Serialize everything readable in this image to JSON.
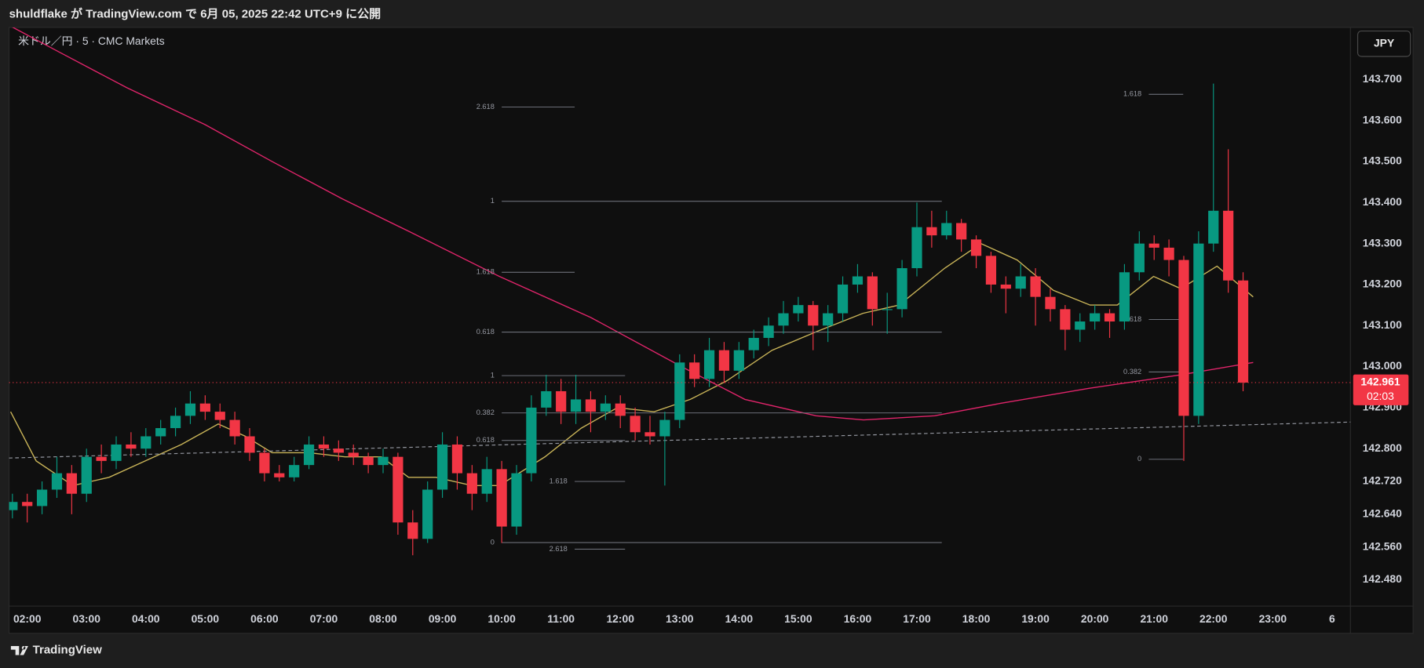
{
  "header": {
    "title": "shuldflake が TradingView.com で 6月 05, 2025 22:42 UTC+9 に公開"
  },
  "footer": {
    "brand": "TradingView"
  },
  "chart_data": {
    "type": "candlestick",
    "symbol": "米ドル／円 · 5 · CMC Markets",
    "currency": "JPY",
    "up_color": "#089981",
    "down_color": "#f23645",
    "x": [
      1.75,
      2,
      2.25,
      2.5,
      2.75,
      3,
      3.25,
      3.5,
      3.75,
      4,
      4.25,
      4.5,
      4.75,
      5,
      5.25,
      5.5,
      5.75,
      6,
      6.25,
      6.5,
      6.75,
      7,
      7.25,
      7.5,
      7.75,
      8,
      8.25,
      8.5,
      8.75,
      9,
      9.25,
      9.5,
      9.75,
      10,
      10.25,
      10.5,
      10.75,
      11,
      11.25,
      11.5,
      11.75,
      12,
      12.25,
      12.5,
      12.75,
      13,
      13.25,
      13.5,
      13.75,
      14,
      14.25,
      14.5,
      14.75,
      15,
      15.25,
      15.5,
      15.75,
      16,
      16.25,
      16.5,
      16.75,
      17,
      17.25,
      17.5,
      17.75,
      18,
      18.25,
      18.5,
      18.75,
      19,
      19.25,
      19.5,
      19.75,
      20,
      20.25,
      20.5,
      20.75,
      21,
      21.25,
      21.5,
      21.75,
      22,
      22.25,
      22.5
    ],
    "open": [
      142.65,
      142.67,
      142.66,
      142.7,
      142.74,
      142.69,
      142.78,
      142.77,
      142.81,
      142.8,
      142.83,
      142.85,
      142.88,
      142.91,
      142.89,
      142.87,
      142.83,
      142.79,
      142.74,
      142.73,
      142.76,
      142.81,
      142.8,
      142.79,
      142.78,
      142.76,
      142.78,
      142.62,
      142.58,
      142.7,
      142.81,
      142.74,
      142.69,
      142.75,
      142.61,
      142.74,
      142.9,
      142.94,
      142.89,
      142.92,
      142.89,
      142.91,
      142.88,
      142.84,
      142.83,
      142.87,
      143.01,
      142.97,
      143.04,
      142.99,
      143.04,
      143.07,
      143.1,
      143.13,
      143.15,
      143.1,
      143.13,
      143.2,
      143.22,
      143.14,
      143.14,
      143.24,
      143.34,
      143.32,
      143.35,
      143.31,
      143.27,
      143.2,
      143.19,
      143.22,
      143.17,
      143.14,
      143.09,
      143.11,
      143.13,
      143.11,
      143.23,
      143.3,
      143.29,
      143.26,
      142.88,
      143.3,
      143.38,
      143.21
    ],
    "high": [
      142.69,
      142.69,
      142.72,
      142.78,
      142.76,
      142.8,
      142.81,
      142.83,
      142.84,
      142.85,
      142.87,
      142.9,
      142.94,
      142.93,
      142.91,
      142.89,
      142.85,
      142.8,
      142.76,
      142.78,
      142.83,
      142.83,
      142.82,
      142.81,
      142.79,
      142.8,
      142.79,
      142.65,
      142.72,
      142.84,
      142.83,
      142.76,
      142.78,
      142.77,
      142.76,
      142.93,
      142.98,
      142.97,
      142.98,
      142.94,
      142.93,
      142.93,
      142.9,
      142.88,
      142.89,
      143.03,
      143.03,
      143.07,
      143.06,
      143.06,
      143.09,
      143.12,
      143.16,
      143.17,
      143.16,
      143.15,
      143.22,
      143.25,
      143.23,
      143.18,
      143.26,
      143.4,
      143.38,
      143.38,
      143.36,
      143.32,
      143.28,
      143.22,
      143.25,
      143.24,
      143.19,
      143.15,
      143.13,
      143.15,
      143.14,
      143.25,
      143.33,
      143.32,
      143.31,
      143.27,
      143.33,
      143.69,
      143.53,
      143.23
    ],
    "low": [
      142.63,
      142.62,
      142.64,
      142.68,
      142.64,
      142.67,
      142.74,
      142.75,
      142.78,
      142.78,
      142.81,
      142.83,
      142.86,
      142.87,
      142.85,
      142.81,
      142.77,
      142.72,
      142.72,
      142.72,
      142.75,
      142.78,
      142.77,
      142.76,
      142.74,
      142.74,
      142.59,
      142.54,
      142.57,
      142.68,
      142.7,
      142.65,
      142.67,
      142.57,
      142.59,
      142.72,
      142.88,
      142.86,
      142.86,
      142.84,
      142.87,
      142.85,
      142.82,
      142.81,
      142.71,
      142.85,
      142.95,
      142.95,
      142.96,
      142.97,
      143.02,
      143.05,
      143.08,
      143.11,
      143.04,
      143.06,
      143.11,
      143.18,
      143.1,
      143.08,
      143.12,
      143.22,
      143.29,
      143.31,
      143.28,
      143.24,
      143.18,
      143.13,
      143.17,
      143.1,
      143.11,
      143.04,
      143.06,
      143.09,
      143.07,
      143.09,
      143.21,
      143.26,
      143.22,
      142.77,
      142.86,
      143.28,
      143.18,
      142.94
    ],
    "close": [
      142.67,
      142.66,
      142.7,
      142.74,
      142.69,
      142.78,
      142.77,
      142.81,
      142.8,
      142.83,
      142.85,
      142.88,
      142.91,
      142.89,
      142.87,
      142.83,
      142.79,
      142.74,
      142.73,
      142.76,
      142.81,
      142.8,
      142.79,
      142.78,
      142.76,
      142.78,
      142.62,
      142.58,
      142.7,
      142.81,
      142.74,
      142.69,
      142.75,
      142.61,
      142.74,
      142.9,
      142.94,
      142.89,
      142.92,
      142.89,
      142.91,
      142.88,
      142.84,
      142.83,
      142.87,
      143.01,
      142.97,
      143.04,
      142.99,
      143.04,
      143.07,
      143.1,
      143.13,
      143.15,
      143.1,
      143.13,
      143.2,
      143.22,
      143.14,
      143.14,
      143.24,
      143.34,
      143.32,
      143.35,
      143.31,
      143.27,
      143.2,
      143.19,
      143.22,
      143.17,
      143.14,
      143.09,
      143.11,
      143.13,
      143.11,
      143.23,
      143.3,
      143.29,
      143.26,
      142.88,
      143.3,
      143.38,
      143.21,
      142.961
    ],
    "xlim": [
      1.694,
      24.31
    ],
    "xticks": [
      {
        "value": 2,
        "label": "02:00"
      },
      {
        "value": 3,
        "label": "03:00"
      },
      {
        "value": 4,
        "label": "04:00"
      },
      {
        "value": 5,
        "label": "05:00"
      },
      {
        "value": 6,
        "label": "06:00"
      },
      {
        "value": 7,
        "label": "07:00"
      },
      {
        "value": 8,
        "label": "08:00"
      },
      {
        "value": 9,
        "label": "09:00"
      },
      {
        "value": 10,
        "label": "10:00"
      },
      {
        "value": 11,
        "label": "11:00"
      },
      {
        "value": 12,
        "label": "12:00"
      },
      {
        "value": 13,
        "label": "13:00"
      },
      {
        "value": 14,
        "label": "14:00"
      },
      {
        "value": 15,
        "label": "15:00"
      },
      {
        "value": 16,
        "label": "16:00"
      },
      {
        "value": 17,
        "label": "17:00"
      },
      {
        "value": 18,
        "label": "18:00"
      },
      {
        "value": 19,
        "label": "19:00"
      },
      {
        "value": 20,
        "label": "20:00"
      },
      {
        "value": 21,
        "label": "21:00"
      },
      {
        "value": 22,
        "label": "22:00"
      },
      {
        "value": 23,
        "label": "23:00"
      },
      {
        "value": 24,
        "label": "6"
      }
    ],
    "ylim": [
      142.416,
      143.827
    ],
    "yticks": [
      {
        "value": 143.7,
        "label": "143.700"
      },
      {
        "value": 143.6,
        "label": "143.600"
      },
      {
        "value": 143.5,
        "label": "143.500"
      },
      {
        "value": 143.4,
        "label": "143.400"
      },
      {
        "value": 143.3,
        "label": "143.300"
      },
      {
        "value": 143.2,
        "label": "143.200"
      },
      {
        "value": 143.1,
        "label": "143.100"
      },
      {
        "value": 143.0,
        "label": "143.000"
      },
      {
        "value": 142.9,
        "label": "142.900"
      },
      {
        "value": 142.8,
        "label": "142.800"
      },
      {
        "value": 142.72,
        "label": "142.720"
      },
      {
        "value": 142.64,
        "label": "142.640"
      },
      {
        "value": 142.56,
        "label": "142.560"
      },
      {
        "value": 142.48,
        "label": "142.480"
      }
    ],
    "moving_averages": [
      {
        "color": "#c9b458",
        "x": [
          1.72,
          2.15,
          2.77,
          3.38,
          3.99,
          4.6,
          5.22,
          5.68,
          6.13,
          6.75,
          7.36,
          7.97,
          8.43,
          8.89,
          9.5,
          9.96,
          10.73,
          11.34,
          11.95,
          12.57,
          13.18,
          13.79,
          14.56,
          15.32,
          16.09,
          16.7,
          17.47,
          18.08,
          18.69,
          19.3,
          19.92,
          20.38,
          20.99,
          21.45,
          22.06,
          22.67
        ],
        "values": [
          142.89,
          142.77,
          142.71,
          142.73,
          142.77,
          142.81,
          142.86,
          142.83,
          142.79,
          142.79,
          142.78,
          142.78,
          142.73,
          142.73,
          142.71,
          142.71,
          142.78,
          142.85,
          142.9,
          142.89,
          142.92,
          142.965,
          143.04,
          143.086,
          143.13,
          143.15,
          143.24,
          143.3,
          143.26,
          143.186,
          143.15,
          143.15,
          143.22,
          143.19,
          143.245,
          143.17
        ]
      },
      {
        "color": "#e0246a",
        "x": [
          1.72,
          2.5,
          3.68,
          5,
          6.13,
          7.3,
          8.43,
          9.96,
          11.5,
          13.03,
          14.1,
          15.3,
          16.1,
          17.3,
          18.4,
          19.9,
          21.45,
          22.67
        ],
        "values": [
          143.83,
          143.77,
          143.68,
          143.59,
          143.5,
          143.41,
          143.33,
          143.22,
          143.12,
          143.0,
          142.92,
          142.88,
          142.87,
          142.88,
          142.91,
          142.947,
          142.98,
          143.01
        ]
      }
    ],
    "trendline": {
      "x": [
        1.69,
        24.36
      ],
      "values": [
        142.777,
        142.865
      ]
    },
    "fib_levels": [
      {
        "label": "2.618",
        "value": 143.633,
        "x": [
          10.0,
          11.23
        ]
      },
      {
        "label": "1",
        "value": 143.403,
        "x": [
          10.0,
          17.42
        ]
      },
      {
        "label": "1.618",
        "value": 143.23,
        "x": [
          10.0,
          11.23
        ]
      },
      {
        "label": "0.618",
        "value": 143.084,
        "x": [
          10.0,
          17.42
        ]
      },
      {
        "label": "1",
        "value": 142.978,
        "x": [
          10.0,
          12.08
        ]
      },
      {
        "label": "0.382",
        "value": 142.887,
        "x": [
          10.0,
          17.42
        ]
      },
      {
        "label": "0.618",
        "value": 142.82,
        "x": [
          10.0,
          12.08
        ]
      },
      {
        "label": "1.618",
        "value": 142.72,
        "x": [
          11.23,
          12.08
        ]
      },
      {
        "label": "0",
        "value": 142.571,
        "x": [
          10.0,
          17.42
        ]
      },
      {
        "label": "2.618",
        "value": 142.555,
        "x": [
          11.23,
          12.08
        ]
      },
      {
        "label": "1.618",
        "value": 143.664,
        "x": [
          20.91,
          21.49
        ]
      },
      {
        "label": "0.618",
        "value": 143.115,
        "x": [
          20.91,
          21.49
        ]
      },
      {
        "label": "0.382",
        "value": 142.987,
        "x": [
          20.91,
          21.49
        ]
      },
      {
        "label": "0",
        "value": 142.774,
        "x": [
          20.91,
          21.49
        ]
      }
    ],
    "last_price": {
      "value": 142.961,
      "countdown": "02:03",
      "color": "#f23645"
    }
  }
}
